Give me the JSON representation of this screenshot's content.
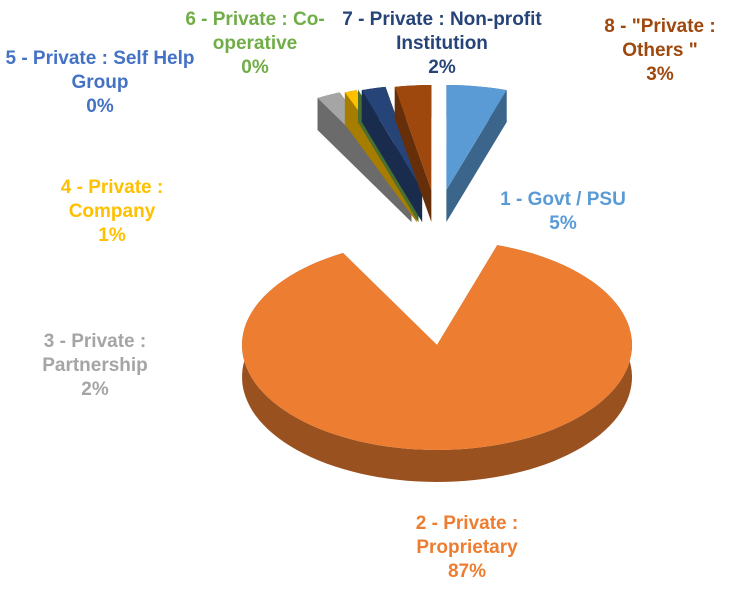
{
  "chart_data": {
    "type": "pie",
    "categories": [
      "1 - Govt / PSU",
      "2 - Private : Proprietary",
      "3 - Private : Partnership",
      "4 - Private : Company",
      "5 - Private : Self Help Group",
      "6 - Private : Co-operative",
      "7 - Private : Non-profit Institution",
      "8 - \"Private : Others \""
    ],
    "values": [
      5,
      87,
      2,
      1,
      0,
      0,
      2,
      3
    ],
    "value_labels": [
      "5%",
      "87%",
      "2%",
      "1%",
      "0%",
      "0%",
      "2%",
      "3%"
    ],
    "colors": [
      "#5b9bd5",
      "#ed7d31",
      "#a5a5a5",
      "#ffc000",
      "#4472c4",
      "#70ad47",
      "#264478",
      "#9e480e"
    ]
  }
}
